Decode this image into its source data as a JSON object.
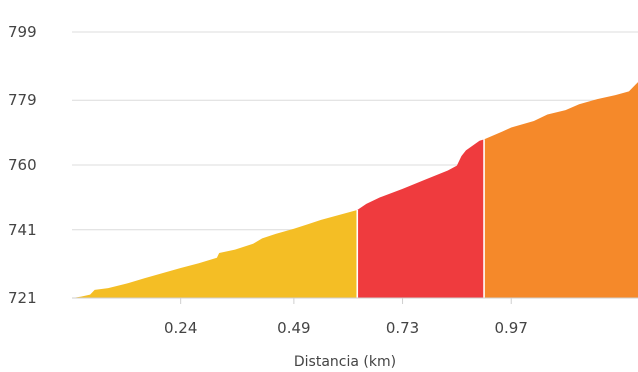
{
  "chart_data": {
    "type": "area",
    "title": "",
    "xlabel": "Distancia (km)",
    "ylabel": "",
    "xlim": [
      0,
      1.25
    ],
    "ylim": [
      721,
      799
    ],
    "x_ticks": [
      0.24,
      0.49,
      0.73,
      0.97
    ],
    "x_tick_labels": [
      "0.24",
      "0.49",
      "0.73",
      "0.97"
    ],
    "y_ticks": [
      721,
      741,
      760,
      779,
      799
    ],
    "y_tick_labels": [
      "721",
      "741",
      "760",
      "779",
      "799"
    ],
    "grid": {
      "horizontal": true,
      "vertical": false
    },
    "colors": {
      "grid": "#dcdcdc",
      "text": "#444444"
    },
    "series": [
      {
        "color": "#f4be25",
        "x": [
          0.0,
          0.02,
          0.04,
          0.05,
          0.08,
          0.12,
          0.16,
          0.2,
          0.24,
          0.28,
          0.32,
          0.325,
          0.36,
          0.4,
          0.42,
          0.45,
          0.49,
          0.52,
          0.55,
          0.63
        ],
        "y": [
          721.0,
          721.4,
          722.0,
          723.4,
          723.9,
          725.2,
          726.8,
          728.3,
          729.8,
          731.2,
          732.8,
          734.2,
          735.2,
          736.9,
          738.5,
          739.8,
          741.3,
          742.6,
          743.9,
          746.8
        ]
      },
      {
        "color": "#ef3b3e",
        "x": [
          0.63,
          0.65,
          0.68,
          0.73,
          0.78,
          0.83,
          0.85,
          0.86,
          0.87,
          0.9,
          0.91
        ],
        "y": [
          746.8,
          748.6,
          750.5,
          753.0,
          755.7,
          758.4,
          759.8,
          762.6,
          764.3,
          767.1,
          767.5
        ]
      },
      {
        "color": "#f5892a",
        "x": [
          0.91,
          0.95,
          0.97,
          1.02,
          1.05,
          1.09,
          1.12,
          1.16,
          1.2,
          1.23,
          1.25
        ],
        "y": [
          767.5,
          769.8,
          771.0,
          772.9,
          774.8,
          776.1,
          777.8,
          779.3,
          780.5,
          781.6,
          784.3
        ]
      }
    ]
  }
}
